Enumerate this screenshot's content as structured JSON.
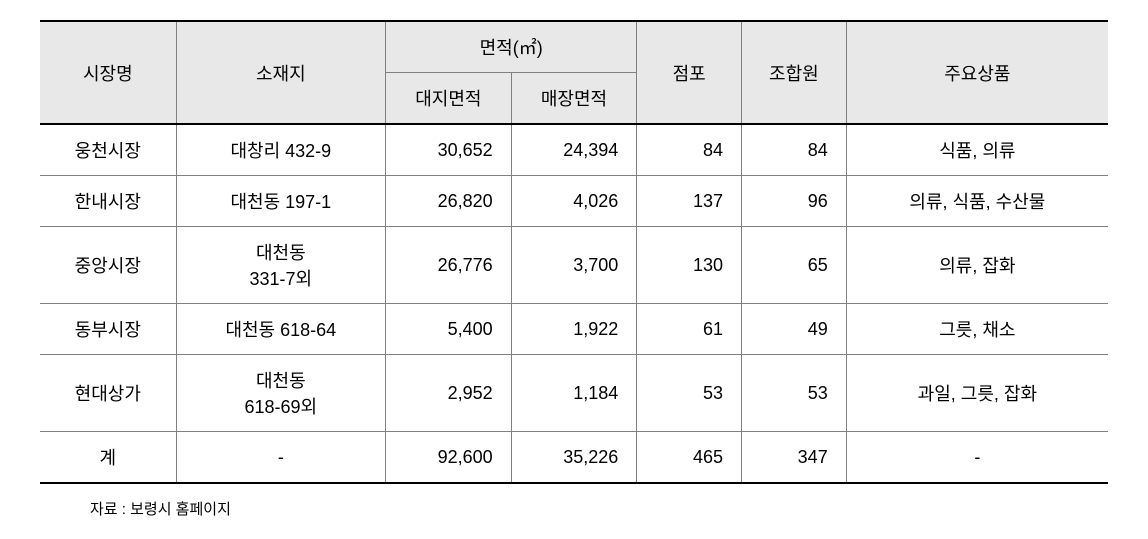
{
  "table": {
    "headers": {
      "market_name": "시장명",
      "location": "소재지",
      "area_group": "면적(㎡)",
      "land_area": "대지면적",
      "store_area": "매장면적",
      "stores": "점포",
      "members": "조합원",
      "products": "주요상품"
    },
    "rows": [
      {
        "market_name": "웅천시장",
        "location": "대창리 432-9",
        "land_area": "30,652",
        "store_area": "24,394",
        "stores": "84",
        "members": "84",
        "products": "식품, 의류"
      },
      {
        "market_name": "한내시장",
        "location": "대천동 197-1",
        "land_area": "26,820",
        "store_area": "4,026",
        "stores": "137",
        "members": "96",
        "products": "의류, 식품, 수산물"
      },
      {
        "market_name": "중앙시장",
        "location": "대천동\n331-7외",
        "land_area": "26,776",
        "store_area": "3,700",
        "stores": "130",
        "members": "65",
        "products": "의류, 잡화"
      },
      {
        "market_name": "동부시장",
        "location": "대천동 618-64",
        "land_area": "5,400",
        "store_area": "1,922",
        "stores": "61",
        "members": "49",
        "products": "그릇, 채소"
      },
      {
        "market_name": "현대상가",
        "location": "대천동\n618-69외",
        "land_area": "2,952",
        "store_area": "1,184",
        "stores": "53",
        "members": "53",
        "products": "과일, 그릇, 잡화"
      },
      {
        "market_name": "계",
        "location": "-",
        "land_area": "92,600",
        "store_area": "35,226",
        "stores": "465",
        "members": "347",
        "products": "-"
      }
    ]
  },
  "source_note": "자료 : 보령시 홈페이지",
  "style": {
    "header_bg": "#e8e8e8",
    "border_color": "#808080",
    "thick_border_color": "#000000",
    "font_size_cell": 18,
    "font_size_note": 15,
    "text_color": "#000000",
    "background": "#ffffff"
  }
}
